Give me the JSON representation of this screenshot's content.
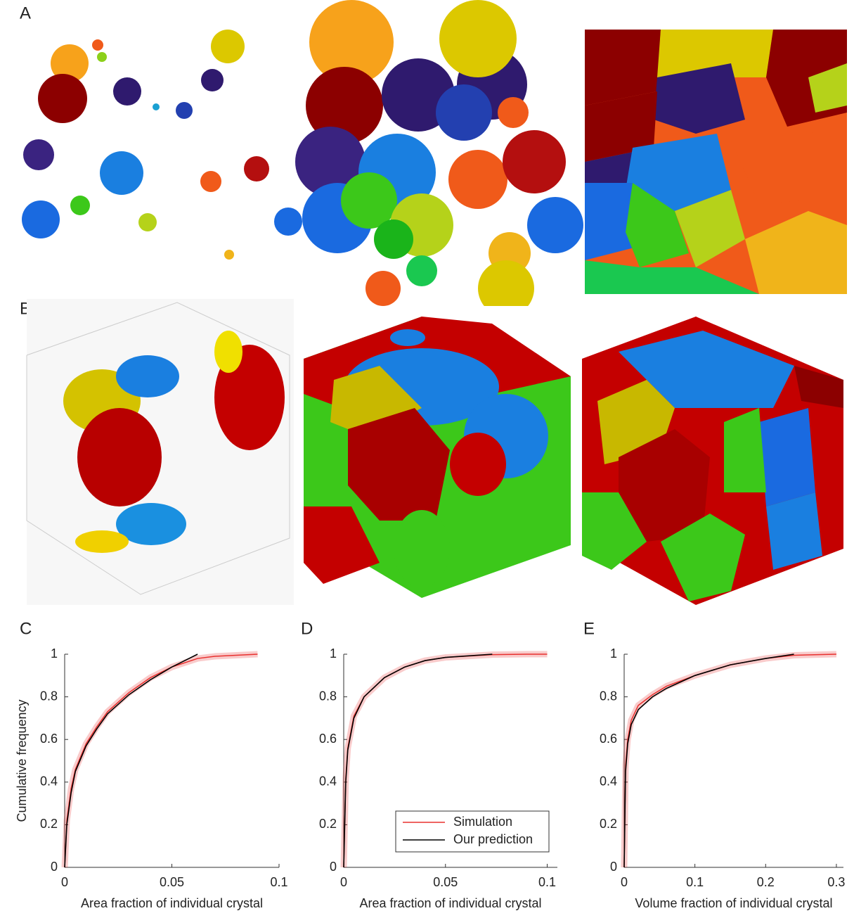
{
  "image_panels": [
    {
      "label": "A"
    },
    {
      "label": "B"
    }
  ],
  "chart_data": [
    {
      "type": "line",
      "panel": "C",
      "xlabel": "Area fraction of individual crystal",
      "ylabel": "Cumulative frequency",
      "x": [
        0,
        0.001,
        0.003,
        0.005,
        0.01,
        0.015,
        0.02,
        0.03,
        0.04,
        0.05,
        0.062,
        0.07,
        0.09
      ],
      "series": [
        {
          "name": "Simulation",
          "color": "#e8312f",
          "values": [
            0,
            0.22,
            0.37,
            0.46,
            0.58,
            0.66,
            0.73,
            0.82,
            0.89,
            0.94,
            0.98,
            0.99,
            1
          ]
        },
        {
          "name": "Our prediction",
          "color": "#000000",
          "values": [
            0,
            0.2,
            0.35,
            0.45,
            0.57,
            0.65,
            0.72,
            0.81,
            0.88,
            0.94,
            1,
            null,
            null
          ]
        }
      ],
      "xlim": [
        0,
        0.1
      ],
      "xticks": [
        0,
        0.05,
        0.1
      ],
      "ylim": [
        0,
        1
      ],
      "yticks": [
        0,
        0.2,
        0.4,
        0.6,
        0.8,
        1
      ]
    },
    {
      "type": "line",
      "panel": "D",
      "xlabel": "Area fraction of individual crystal",
      "legend": "lower right",
      "x": [
        0,
        0.001,
        0.002,
        0.005,
        0.01,
        0.02,
        0.03,
        0.04,
        0.05,
        0.073,
        0.09,
        0.1
      ],
      "series": [
        {
          "name": "Simulation",
          "color": "#e8312f",
          "values": [
            0,
            0.42,
            0.56,
            0.71,
            0.8,
            0.89,
            0.94,
            0.97,
            0.985,
            0.998,
            1,
            1
          ]
        },
        {
          "name": "Our prediction",
          "color": "#000000",
          "values": [
            0,
            0.4,
            0.55,
            0.7,
            0.8,
            0.89,
            0.94,
            0.97,
            0.985,
            1,
            null,
            null
          ]
        }
      ],
      "xlim": [
        0,
        0.105
      ],
      "xticks": [
        0,
        0.05,
        0.1
      ],
      "ylim": [
        0,
        1
      ],
      "yticks": [
        0,
        0.2,
        0.4,
        0.6,
        0.8,
        1
      ]
    },
    {
      "type": "line",
      "panel": "E",
      "xlabel": "Volume fraction of individual crystal",
      "x": [
        0,
        0.002,
        0.005,
        0.01,
        0.02,
        0.04,
        0.06,
        0.1,
        0.15,
        0.2,
        0.24,
        0.3
      ],
      "series": [
        {
          "name": "Simulation",
          "color": "#e8312f",
          "values": [
            0,
            0.48,
            0.6,
            0.69,
            0.76,
            0.81,
            0.85,
            0.9,
            0.95,
            0.98,
            0.995,
            1
          ]
        },
        {
          "name": "Our prediction",
          "color": "#000000",
          "values": [
            0,
            0.45,
            0.58,
            0.67,
            0.74,
            0.8,
            0.84,
            0.9,
            0.95,
            0.98,
            1,
            null
          ]
        }
      ],
      "xlim": [
        0,
        0.31
      ],
      "xticks": [
        0,
        0.1,
        0.2,
        0.3
      ],
      "ylim": [
        0,
        1
      ],
      "yticks": [
        0,
        0.2,
        0.4,
        0.6,
        0.8,
        1
      ]
    }
  ]
}
